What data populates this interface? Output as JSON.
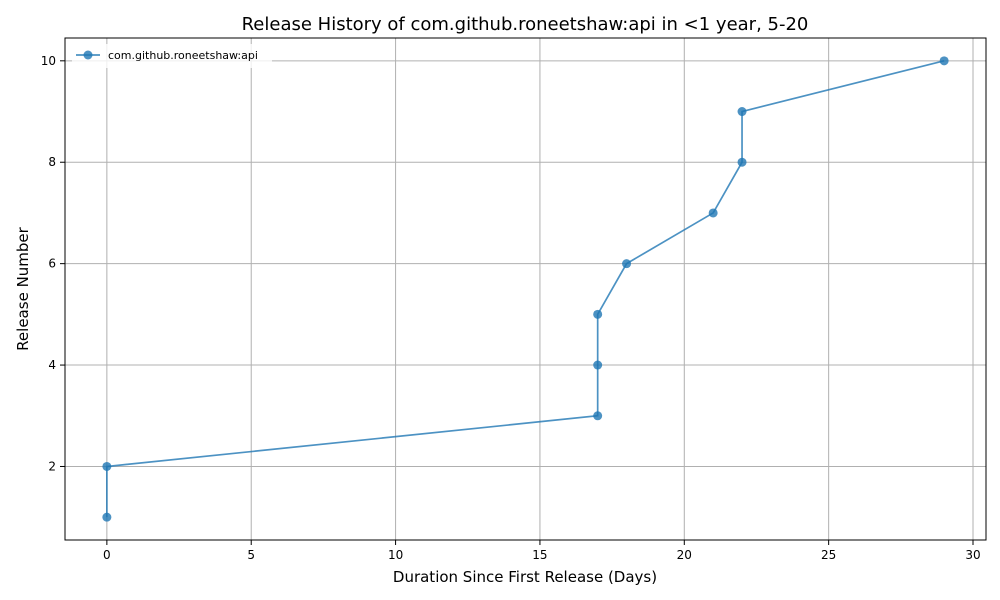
{
  "chart_data": {
    "type": "line",
    "title": "Release History of com.github.roneetshaw:api in <1 year, 5-20",
    "xlabel": "Duration Since First Release (Days)",
    "ylabel": "Release Number",
    "xlim": [
      -1.45,
      30.45
    ],
    "ylim": [
      0.55,
      10.45
    ],
    "xticks": [
      0,
      5,
      10,
      15,
      20,
      25,
      30
    ],
    "yticks": [
      2,
      4,
      6,
      8,
      10
    ],
    "grid": true,
    "legend_position": "top-left",
    "series": [
      {
        "name": "com.github.roneetshaw:api",
        "color": "#1f77b4",
        "x": [
          0,
          0,
          17,
          17,
          17,
          18,
          21,
          22,
          22,
          29
        ],
        "y": [
          1,
          2,
          3,
          4,
          5,
          6,
          7,
          8,
          9,
          10
        ]
      }
    ]
  }
}
